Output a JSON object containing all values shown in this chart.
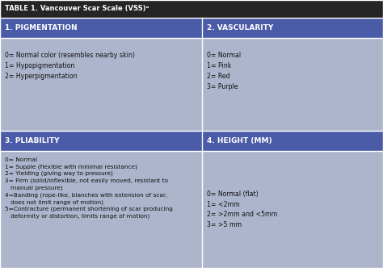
{
  "title": "TABLE 1. Vancouver Scar Scale (VSS)ᵃ",
  "title_bg": "#252525",
  "title_color": "#ffffff",
  "header_bg": "#4a5ca8",
  "header_color": "#ffffff",
  "cell_bg": "#adb5cc",
  "cell_color": "#111111",
  "border_color": "#ffffff",
  "headers": [
    "1. PIGMENTATION",
    "2. VASCULARITY",
    "3. PLIABILITY",
    "4. HEIGHT (MM)"
  ],
  "pigmentation_content": "0= Normal color (resembles nearby skin)\n1= Hypopigmentation\n2= Hyperpigmentation",
  "vascularity_content": "0= Normal\n1= Pink\n2= Red\n3= Purple",
  "pliability_content": "0= Normal\n1= Supple (flexible with minimal resistance)\n2= Yielding (giving way to pressure)\n3= Firm (solid/inflexible, not easily moved, resistant to\n   manual pressure)\n4=Banding (rope-like, blanches with extension of scar,\n   does not limit range of motion)\n5=Contracture (permanent shortening of scar producing\n   deformity or distortion, limits range of motion)",
  "height_content": "0= Normal (flat)\n1= <2mm\n2= >2mm and <5mm\n3= >5 mm",
  "fig_width": 4.74,
  "fig_height": 3.32,
  "dpi": 100
}
